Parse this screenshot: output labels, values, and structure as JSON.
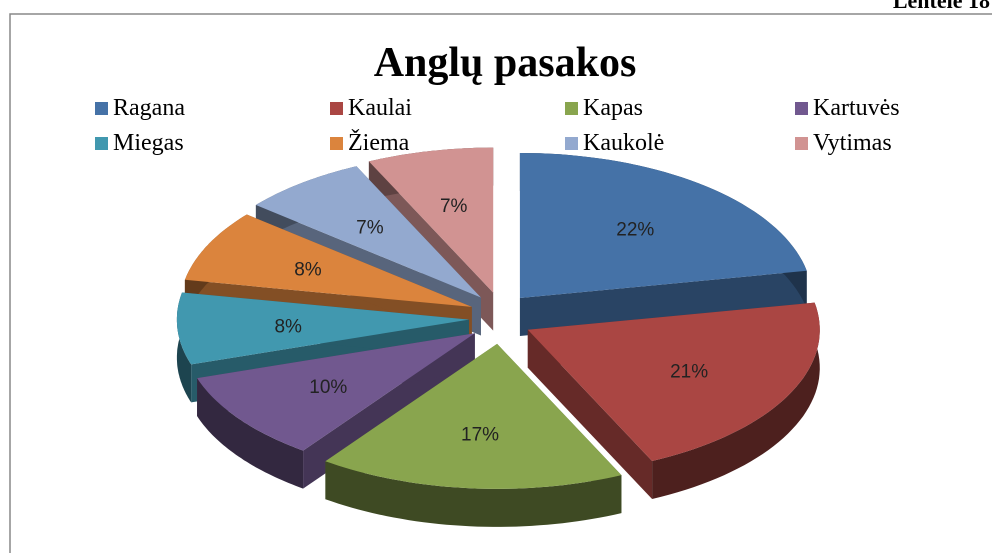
{
  "caption": "Lentelė 18",
  "chart_data": {
    "type": "pie3d",
    "title": "Anglų pasakos",
    "categories": [
      "Ragana",
      "Kaulai",
      "Kapas",
      "Kartuvės",
      "Miegas",
      "Žiema",
      "Kaukolė",
      "Vytimas"
    ],
    "values": [
      22,
      21,
      17,
      10,
      8,
      8,
      7,
      7
    ],
    "value_labels": [
      "22%",
      "21%",
      "17%",
      "10%",
      "8%",
      "8%",
      "7%",
      "7%"
    ],
    "colors": [
      "#4572a7",
      "#aa4643",
      "#89a54e",
      "#71588f",
      "#4198af",
      "#db843d",
      "#93a9cf",
      "#d19392"
    ],
    "legend": "top"
  }
}
